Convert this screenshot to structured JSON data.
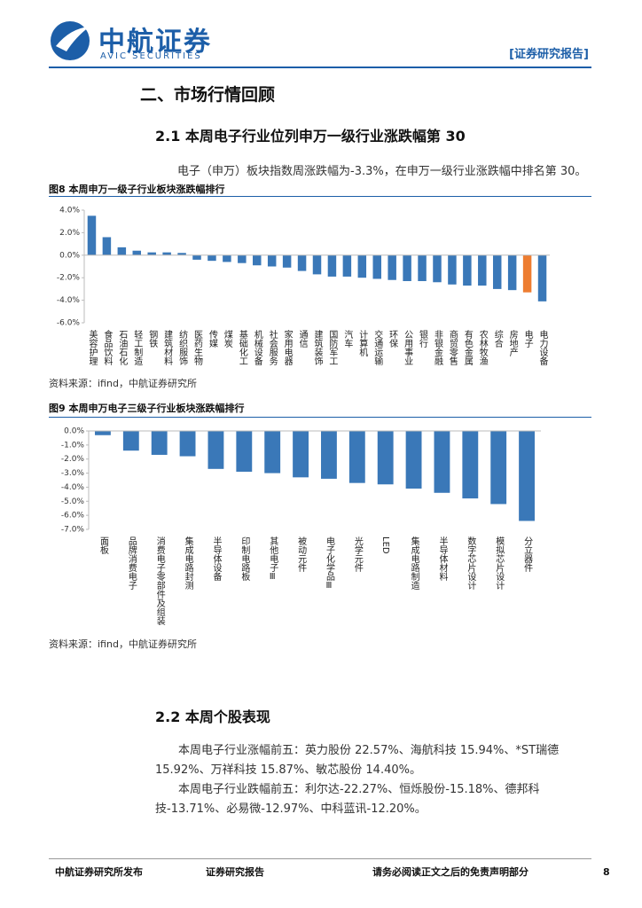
{
  "header": {
    "logo_cn": "中航证券",
    "logo_en": "AVIC SECURITIES",
    "tag": "[证券研究报告]"
  },
  "section_title": "二、市场行情回顾",
  "subsection_1": "2.1 本周电子行业位列申万一级行业涨跌幅第 30",
  "paragraph_1": "电子（申万）板块指数周涨跌幅为-3.3%，在申万一级行业涨跌幅中排名第 30。",
  "figure_captions": [
    "图8 本周申万一级子行业板块涨跌幅排行",
    "图9 本周申万电子三级子行业板块涨跌幅排行"
  ],
  "sources": [
    "资料来源：ifind，中航证券研究所",
    "资料来源：ifind，中航证券研究所"
  ],
  "chart_data": [
    {
      "type": "bar",
      "categories": [
        "美容护理",
        "食品饮料",
        "石油石化",
        "轻工制造",
        "钢铁",
        "建筑材料",
        "纺织服饰",
        "医药生物",
        "传媒",
        "煤炭",
        "基础化工",
        "机械设备",
        "社会服务",
        "家用电器",
        "通信",
        "建筑装饰",
        "国防军工",
        "汽车",
        "计算机",
        "交通运输",
        "环保",
        "公用事业",
        "银行",
        "非银金融",
        "商贸零售",
        "有色金属",
        "农林牧渔",
        "综合",
        "房地产",
        "电子",
        "电力设备"
      ],
      "values": [
        3.5,
        1.6,
        0.7,
        0.4,
        0.25,
        0.25,
        0.2,
        -0.4,
        -0.5,
        -0.6,
        -0.7,
        -0.9,
        -1.0,
        -1.1,
        -1.4,
        -1.7,
        -1.9,
        -1.9,
        -2.0,
        -2.1,
        -2.2,
        -2.3,
        -2.3,
        -2.4,
        -2.6,
        -2.7,
        -2.7,
        -3.0,
        -3.1,
        -3.3,
        -4.1
      ],
      "colors": [
        "#3a78b8",
        "#3a78b8",
        "#3a78b8",
        "#3a78b8",
        "#3a78b8",
        "#3a78b8",
        "#3a78b8",
        "#3a78b8",
        "#3a78b8",
        "#3a78b8",
        "#3a78b8",
        "#3a78b8",
        "#3a78b8",
        "#3a78b8",
        "#3a78b8",
        "#3a78b8",
        "#3a78b8",
        "#3a78b8",
        "#3a78b8",
        "#3a78b8",
        "#3a78b8",
        "#3a78b8",
        "#3a78b8",
        "#3a78b8",
        "#3a78b8",
        "#3a78b8",
        "#3a78b8",
        "#3a78b8",
        "#3a78b8",
        "#ed7d31",
        "#3a78b8"
      ],
      "ylim": [
        -6,
        4
      ],
      "yticks": [
        {
          "value": 4,
          "label": "4.0%"
        },
        {
          "value": 2,
          "label": "2.0%"
        },
        {
          "value": 0,
          "label": "0.0%"
        },
        {
          "value": -2,
          "label": "-2.0%"
        },
        {
          "value": -4,
          "label": "-4.0%"
        },
        {
          "value": -6,
          "label": "-6.0%"
        }
      ],
      "grid": false
    },
    {
      "type": "bar",
      "categories": [
        "面板",
        "品牌消费电子",
        "消费电子零部件及组装",
        "集成电路封测",
        "半导体设备",
        "印制电路板",
        "其他电子Ⅲ",
        "被动元件",
        "电子化学品Ⅲ",
        "光学元件",
        "LED",
        "集成电路制造",
        "半导体材料",
        "数字芯片设计",
        "模拟芯片设计",
        "分立器件"
      ],
      "values": [
        -0.3,
        -1.4,
        -1.7,
        -1.8,
        -2.7,
        -2.9,
        -3.0,
        -3.3,
        -3.4,
        -3.7,
        -3.8,
        -4.1,
        -4.4,
        -4.8,
        -5.2,
        -6.4
      ],
      "color": "#3a78b8",
      "ylim": [
        -7,
        0
      ],
      "yticks": [
        {
          "value": 0,
          "label": "0.0%"
        },
        {
          "value": -1,
          "label": "-1.0%"
        },
        {
          "value": -2,
          "label": "-2.0%"
        },
        {
          "value": -3,
          "label": "-3.0%"
        },
        {
          "value": -4,
          "label": "-4.0%"
        },
        {
          "value": -5,
          "label": "-5.0%"
        },
        {
          "value": -6,
          "label": "-6.0%"
        },
        {
          "value": -7,
          "label": "-7.0%"
        }
      ],
      "grid": false
    }
  ],
  "subsection_2": "2.2 本周个股表现",
  "paragraph_2": "本周电子行业涨幅前五：英力股份 22.57%、海航科技 15.94%、*ST瑞德 15.92%、万祥科技 15.87%、敏芯股份 14.40%。",
  "paragraph_3": "本周电子行业跌幅前五：利尔达-22.27%、恒烁股份-15.18%、德邦科技-13.71%、必易微-12.97%、中科蓝讯-12.20%。",
  "footer": {
    "publisher": "中航证券研究所发布",
    "report": "证券研究报告",
    "disclaimer": "请务必阅读正文之后的免责声明部分",
    "page": "8"
  }
}
